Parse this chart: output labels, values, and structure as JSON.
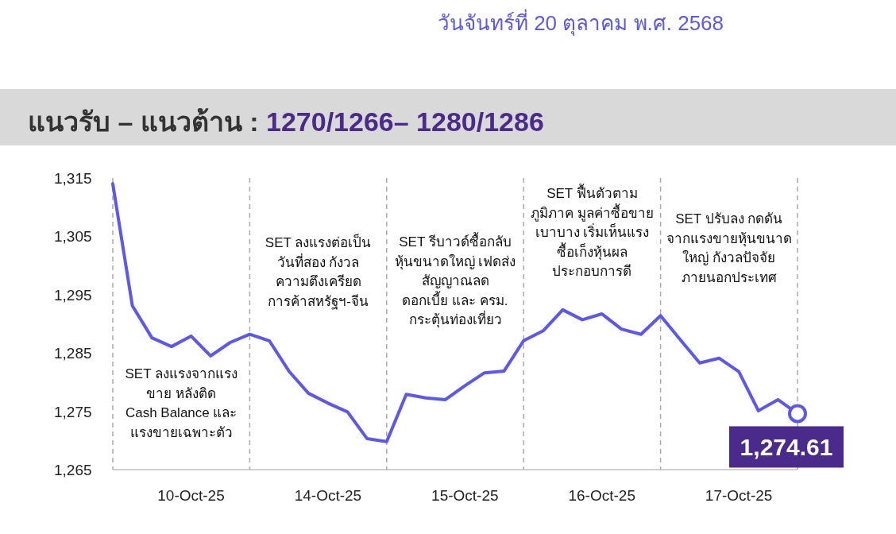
{
  "chart_data": {
    "type": "line",
    "title": "แนวรับ – แนวต้าน : ",
    "subtitle": "1270/1266– 1280/1286",
    "categories": [
      null,
      null,
      null,
      null,
      "10-Oct-25",
      null,
      null,
      null,
      null,
      null,
      null,
      "14-Oct-25",
      null,
      null,
      null,
      null,
      null,
      null,
      "15-Oct-25",
      null,
      null,
      null,
      null,
      null,
      null,
      "16-Oct-25",
      null,
      null,
      null,
      null,
      null,
      null,
      "17-Oct-25",
      null,
      null,
      null
    ],
    "series": [
      {
        "color": "#5b57f0",
        "values": [
          1314.0,
          1293.1,
          1287.6,
          1286.1,
          1287.9,
          1284.5,
          1286.8,
          1288.2,
          1287.1,
          1281.9,
          1278.1,
          1276.4,
          1274.9,
          1270.3,
          1269.8,
          1277.9,
          1277.3,
          1277.0,
          1279.4,
          1281.6,
          1281.9,
          1287.1,
          1288.8,
          1292.4,
          1290.7,
          1291.7,
          1289.1,
          1288.2,
          1291.4,
          1287.3,
          1283.3,
          1284.1,
          1281.8,
          1275.1,
          1277.0,
          1274.61
        ],
        "value_labels": [
          null,
          null,
          null,
          null,
          null,
          null,
          null,
          null,
          null,
          null,
          null,
          null,
          null,
          null,
          null,
          null,
          null,
          null,
          null,
          null,
          null,
          null,
          null,
          null,
          null,
          null,
          null,
          null,
          null,
          null,
          null,
          null,
          null,
          null,
          null,
          "1,274.61"
        ]
      }
    ],
    "ylim": [
      1265,
      1315
    ],
    "yticks": [
      {
        "value": 1265,
        "label": "1,265"
      },
      {
        "value": 1275,
        "label": "1,275"
      },
      {
        "value": 1285,
        "label": "1,285"
      },
      {
        "value": 1295,
        "label": "1,295"
      },
      {
        "value": 1305,
        "label": "1,305"
      },
      {
        "value": 1315,
        "label": "1,315"
      }
    ],
    "grid": "x",
    "annotations": [
      "วันจันทร์ที่ 20 ตุลาคม พ.ศ. 2568",
      "SET ลงแรงจากแรง\nขาย หลังติด\nCash Balance และ\nแรงขายเฉพาะตัว",
      "SET ลงแรงต่อเป็น\nวันที่สอง กังวล\nความตึงเครียด\nการค้าสหรัฐฯ-จีน",
      "SET รีบาวด์ซื้อกลับ\nหุ้นขนาดใหญ่ เฟดส่ง\nสัญญาณลด\nดอกเบี้ย และ ครม.\nกระตุ้นท่องเที่ยว",
      "SET ฟื้นตัวตาม\nภูมิภาค มูลค่าซื้อขาย\nเบาบาง เริ่มเห็นแรง\nซื้อเก็งหุ้นผล\nประกอบการดี",
      "SET ปรับลง กดดัน\nจากแรงขายหุ้นขนาด\nใหญ่ กังวลปัจจัย\nภายนอกประเทศ"
    ],
    "line_style": "solid"
  }
}
